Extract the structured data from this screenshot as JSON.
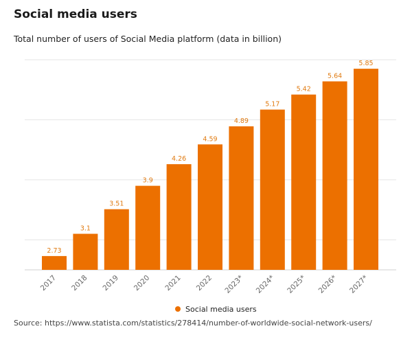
{
  "title": "Social media users",
  "subtitle": "Total number of users of Social Media platform (data in billion)",
  "source": "Source: https://www.statista.com/statistics/278414/number-of-worldwide-social-network-users/",
  "colors": {
    "bar": "#EC7000",
    "label": "#E07A10",
    "grid": "#e4e4e4",
    "tick": "#666666"
  },
  "chart_data": {
    "type": "bar",
    "title": "Social media users",
    "subtitle": "Total number of users of Social Media platform (data in billion)",
    "categories": [
      "2017",
      "2018",
      "2019",
      "2020",
      "2021",
      "2022",
      "2023*",
      "2024*",
      "2025*",
      "2026*",
      "2027*"
    ],
    "series": [
      {
        "name": "Social media users",
        "values": [
          2.73,
          3.1,
          3.51,
          3.9,
          4.26,
          4.59,
          4.89,
          5.17,
          5.42,
          5.64,
          5.85
        ],
        "labels": [
          "2.73",
          "3.1",
          "3.51",
          "3.9",
          "4.26",
          "4.59",
          "4.89",
          "5.17",
          "5.42",
          "5.64",
          "5.85"
        ]
      }
    ],
    "ylim": [
      2.5,
      6
    ],
    "grid": true,
    "legend": "bottom-center",
    "xlabel": "",
    "ylabel": ""
  }
}
